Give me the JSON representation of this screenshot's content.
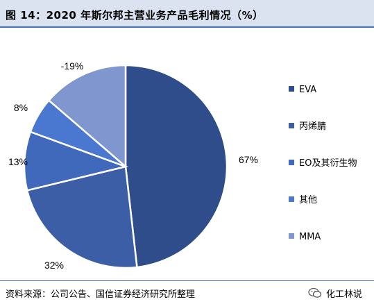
{
  "title": "图 14：2020 年斯尔邦主营业务产品毛利情况（%）",
  "source": "资料来源：公司公告、国信证券经济研究所整理",
  "watermark": "化工林说",
  "chart_data": {
    "type": "pie",
    "series": [
      {
        "name": "EVA",
        "label": "67%",
        "value": 67,
        "color": "#2e4d8a"
      },
      {
        "name": "丙烯腈",
        "label": "32%",
        "value": 32,
        "color": "#3b5ea6"
      },
      {
        "name": "EO及其衍生物",
        "label": "13%",
        "value": 13,
        "color": "#4169bb"
      },
      {
        "name": "其他",
        "label": "8%",
        "value": 8,
        "color": "#4a78d0"
      },
      {
        "name": "MMA",
        "label": "-19%",
        "value": -19,
        "color": "#8096cf"
      }
    ],
    "legend_position": "right"
  }
}
